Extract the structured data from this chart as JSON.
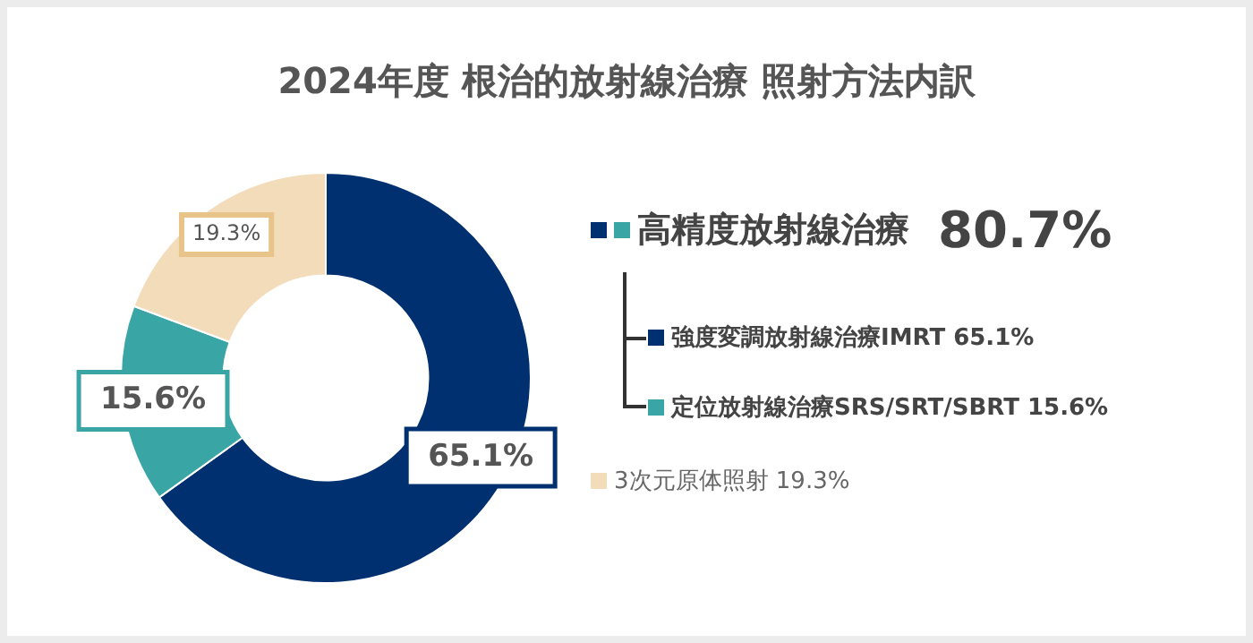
{
  "chart_data": {
    "type": "donut",
    "title": "2024年度 根治的放射線治療 照射方法内訳",
    "categories": [
      "強度変調放射線治療IMRT",
      "定位放射線治療SRS/SRT/SBRT",
      "3次元原体照射"
    ],
    "values": [
      65.1,
      15.6,
      19.3
    ],
    "colors": [
      "#003070",
      "#3aa5a5",
      "#f2dcb9"
    ],
    "value_labels": [
      "65.1%",
      "15.6%",
      "19.3%"
    ],
    "annotations": [
      "高精度放射線治療",
      "80.7%"
    ],
    "legend": "right"
  }
}
